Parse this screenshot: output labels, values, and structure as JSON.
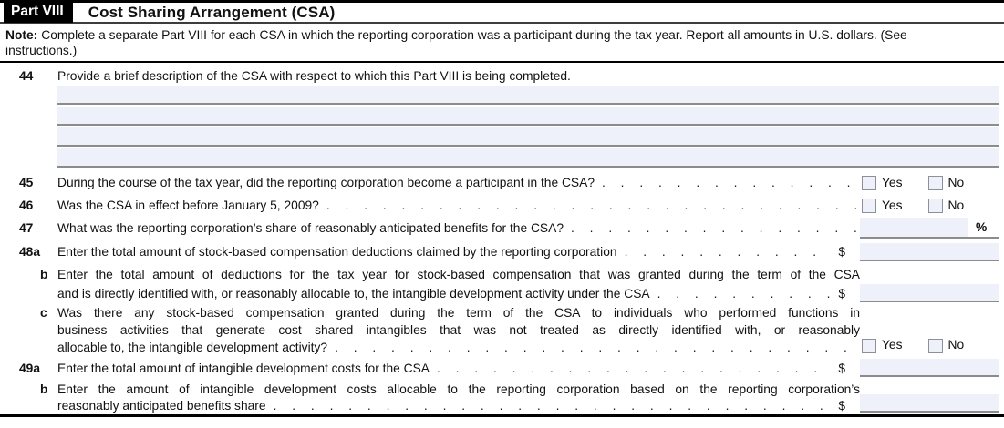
{
  "dot_leader": ". ",
  "header": {
    "part_label": "Part VIII",
    "title": "Cost Sharing Arrangement (CSA)"
  },
  "note": {
    "label": "Note:",
    "text": "Complete a separate Part VIII for each CSA in which the reporting corporation was a participant during the tax year. Report all amounts in U.S. dollars. (See instructions.)"
  },
  "answers": {
    "yes_label": "Yes",
    "no_label": "No",
    "percent_sign": "%",
    "dollar_sign": "$"
  },
  "colors": {
    "field_bg": "#eef1f9",
    "field_underline": "#8c8c8c",
    "checkbox_border": "#8b909b",
    "header_bg": "#000000"
  },
  "lines": {
    "l44": {
      "num": "44",
      "text": "Provide a brief description of the CSA with respect to which this Part VIII is being completed.",
      "value_lines": [
        "",
        "",
        "",
        ""
      ]
    },
    "l45": {
      "num": "45",
      "text": "During the course of the tax year, did the reporting corporation become a participant in the CSA?",
      "yes_checked": false,
      "no_checked": false
    },
    "l46": {
      "num": "46",
      "text": "Was the CSA in effect before January 5, 2009?",
      "yes_checked": false,
      "no_checked": false
    },
    "l47": {
      "num": "47",
      "text": "What was the reporting corporation’s share of reasonably anticipated benefits for the CSA?",
      "value": ""
    },
    "l48a": {
      "num": "48a",
      "text": "Enter the total amount of stock-based compensation deductions claimed by the reporting corporation",
      "value": ""
    },
    "l48b": {
      "num": "b",
      "line1": "Enter the total amount of deductions for the tax year for stock-based compensation that was granted during the term of the CSA",
      "line2": "and is directly identified with, or reasonably allocable to, the intangible development activity under the CSA",
      "value": ""
    },
    "l48c": {
      "num": "c",
      "line1": "Was there any stock-based compensation granted during the term of the CSA to individuals who performed functions in",
      "line2": "business activities that generate cost shared intangibles that was not treated as directly identified with, or reasonably",
      "line3": "allocable to, the intangible development activity?",
      "yes_checked": false,
      "no_checked": false
    },
    "l49a": {
      "num": "49a",
      "text": "Enter the total amount of intangible development costs for the CSA",
      "value": ""
    },
    "l49b": {
      "num": "b",
      "line1": "Enter the amount of intangible development costs allocable to the reporting corporation based on the reporting corporation’s",
      "line2": "reasonably anticipated benefits share",
      "value": ""
    }
  }
}
